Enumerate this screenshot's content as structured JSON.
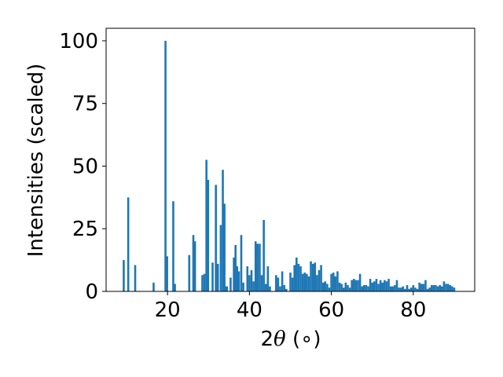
{
  "chart_data": {
    "type": "bar",
    "title": "",
    "xlabel_prefix": "2",
    "xlabel_theta": "θ",
    "xlabel_suffix": " (∘)",
    "ylabel": "Intensities (scaled)",
    "xlim": [
      5,
      95
    ],
    "ylim": [
      0,
      105
    ],
    "xticks": [
      20,
      40,
      60,
      80
    ],
    "yticks": [
      0,
      25,
      50,
      75,
      100
    ],
    "bar_color": "#1f77b4",
    "bar_width": 0.5,
    "grid": false,
    "legend": "none",
    "series": [
      {
        "x": [
          9.3,
          10.4,
          12.1,
          16.6,
          19.5,
          19.9,
          21.4,
          21.8,
          25.3,
          26.3,
          26.7,
          28.5,
          29.0,
          29.5,
          29.9,
          31.0,
          31.8,
          32.3,
          33.0,
          33.5,
          33.9,
          34.1,
          34.5,
          35.4,
          36.2,
          36.6,
          37.0,
          37.4,
          38.0,
          38.5,
          39.5,
          40.0,
          40.5,
          41.0,
          41.5,
          42.0,
          42.5,
          43.0,
          43.5,
          44.0,
          44.5,
          45.0,
          46.5,
          47.0,
          47.5,
          48.0,
          48.5,
          49.0,
          50.0,
          50.5,
          51.0,
          51.5,
          52.0,
          52.5,
          53.0,
          53.5,
          54.0,
          54.5,
          55.0,
          55.5,
          56.0,
          56.5,
          57.0,
          57.5,
          58.0,
          58.5,
          59.0,
          59.5,
          60.0,
          60.5,
          61.0,
          61.5,
          62.0,
          62.5,
          63.0,
          63.5,
          64.0,
          64.5,
          65.0,
          65.5,
          66.0,
          66.5,
          67.0,
          67.5,
          68.0,
          68.5,
          69.0,
          69.5,
          70.0,
          70.5,
          71.0,
          71.5,
          72.0,
          72.5,
          73.0,
          73.5,
          74.0,
          74.5,
          75.0,
          75.5,
          76.0,
          76.5,
          77.0,
          77.5,
          78.0,
          78.5,
          79.0,
          79.5,
          80.0,
          80.5,
          81.0,
          81.5,
          82.0,
          82.5,
          83.0,
          83.5,
          84.0,
          84.5,
          85.0,
          85.5,
          86.0,
          86.5,
          87.0,
          87.5,
          88.0,
          88.5,
          89.0,
          89.5,
          90.0
        ],
        "values": [
          12.5,
          37.5,
          10.5,
          3.5,
          100,
          14.0,
          36.0,
          3.0,
          14.5,
          22.5,
          20.0,
          6.5,
          7.0,
          52.5,
          44.5,
          11.5,
          42.5,
          11.0,
          26.5,
          48.5,
          35.0,
          2.0,
          2.0,
          5.5,
          13.5,
          18.5,
          10.0,
          8.0,
          22.5,
          3.5,
          10.0,
          6.5,
          8.5,
          4.0,
          20.0,
          19.0,
          19.0,
          6.5,
          28.5,
          3.0,
          10.0,
          2.0,
          6.5,
          5.5,
          2.0,
          8.0,
          2.5,
          1.0,
          7.5,
          5.5,
          10.5,
          13.5,
          11.0,
          10.0,
          7.0,
          7.5,
          7.0,
          6.0,
          12.0,
          11.0,
          11.5,
          6.5,
          8.5,
          10.5,
          3.5,
          4.0,
          3.0,
          1.5,
          7.0,
          7.5,
          6.0,
          8.0,
          3.5,
          3.0,
          1.5,
          3.5,
          2.5,
          1.5,
          4.5,
          5.0,
          4.5,
          4.5,
          7.0,
          2.0,
          2.5,
          2.5,
          2.0,
          5.0,
          3.5,
          4.0,
          5.0,
          3.0,
          4.5,
          3.5,
          4.5,
          4.0,
          5.0,
          2.0,
          2.0,
          2.5,
          4.5,
          1.5,
          1.5,
          2.0,
          1.0,
          2.5,
          1.0,
          1.5,
          2.5,
          1.5,
          1.0,
          3.5,
          3.0,
          3.0,
          4.5,
          1.0,
          1.5,
          2.5,
          2.5,
          2.5,
          2.0,
          2.5,
          2.0,
          4.0,
          3.0,
          3.0,
          2.5,
          2.0,
          1.5
        ]
      }
    ]
  }
}
